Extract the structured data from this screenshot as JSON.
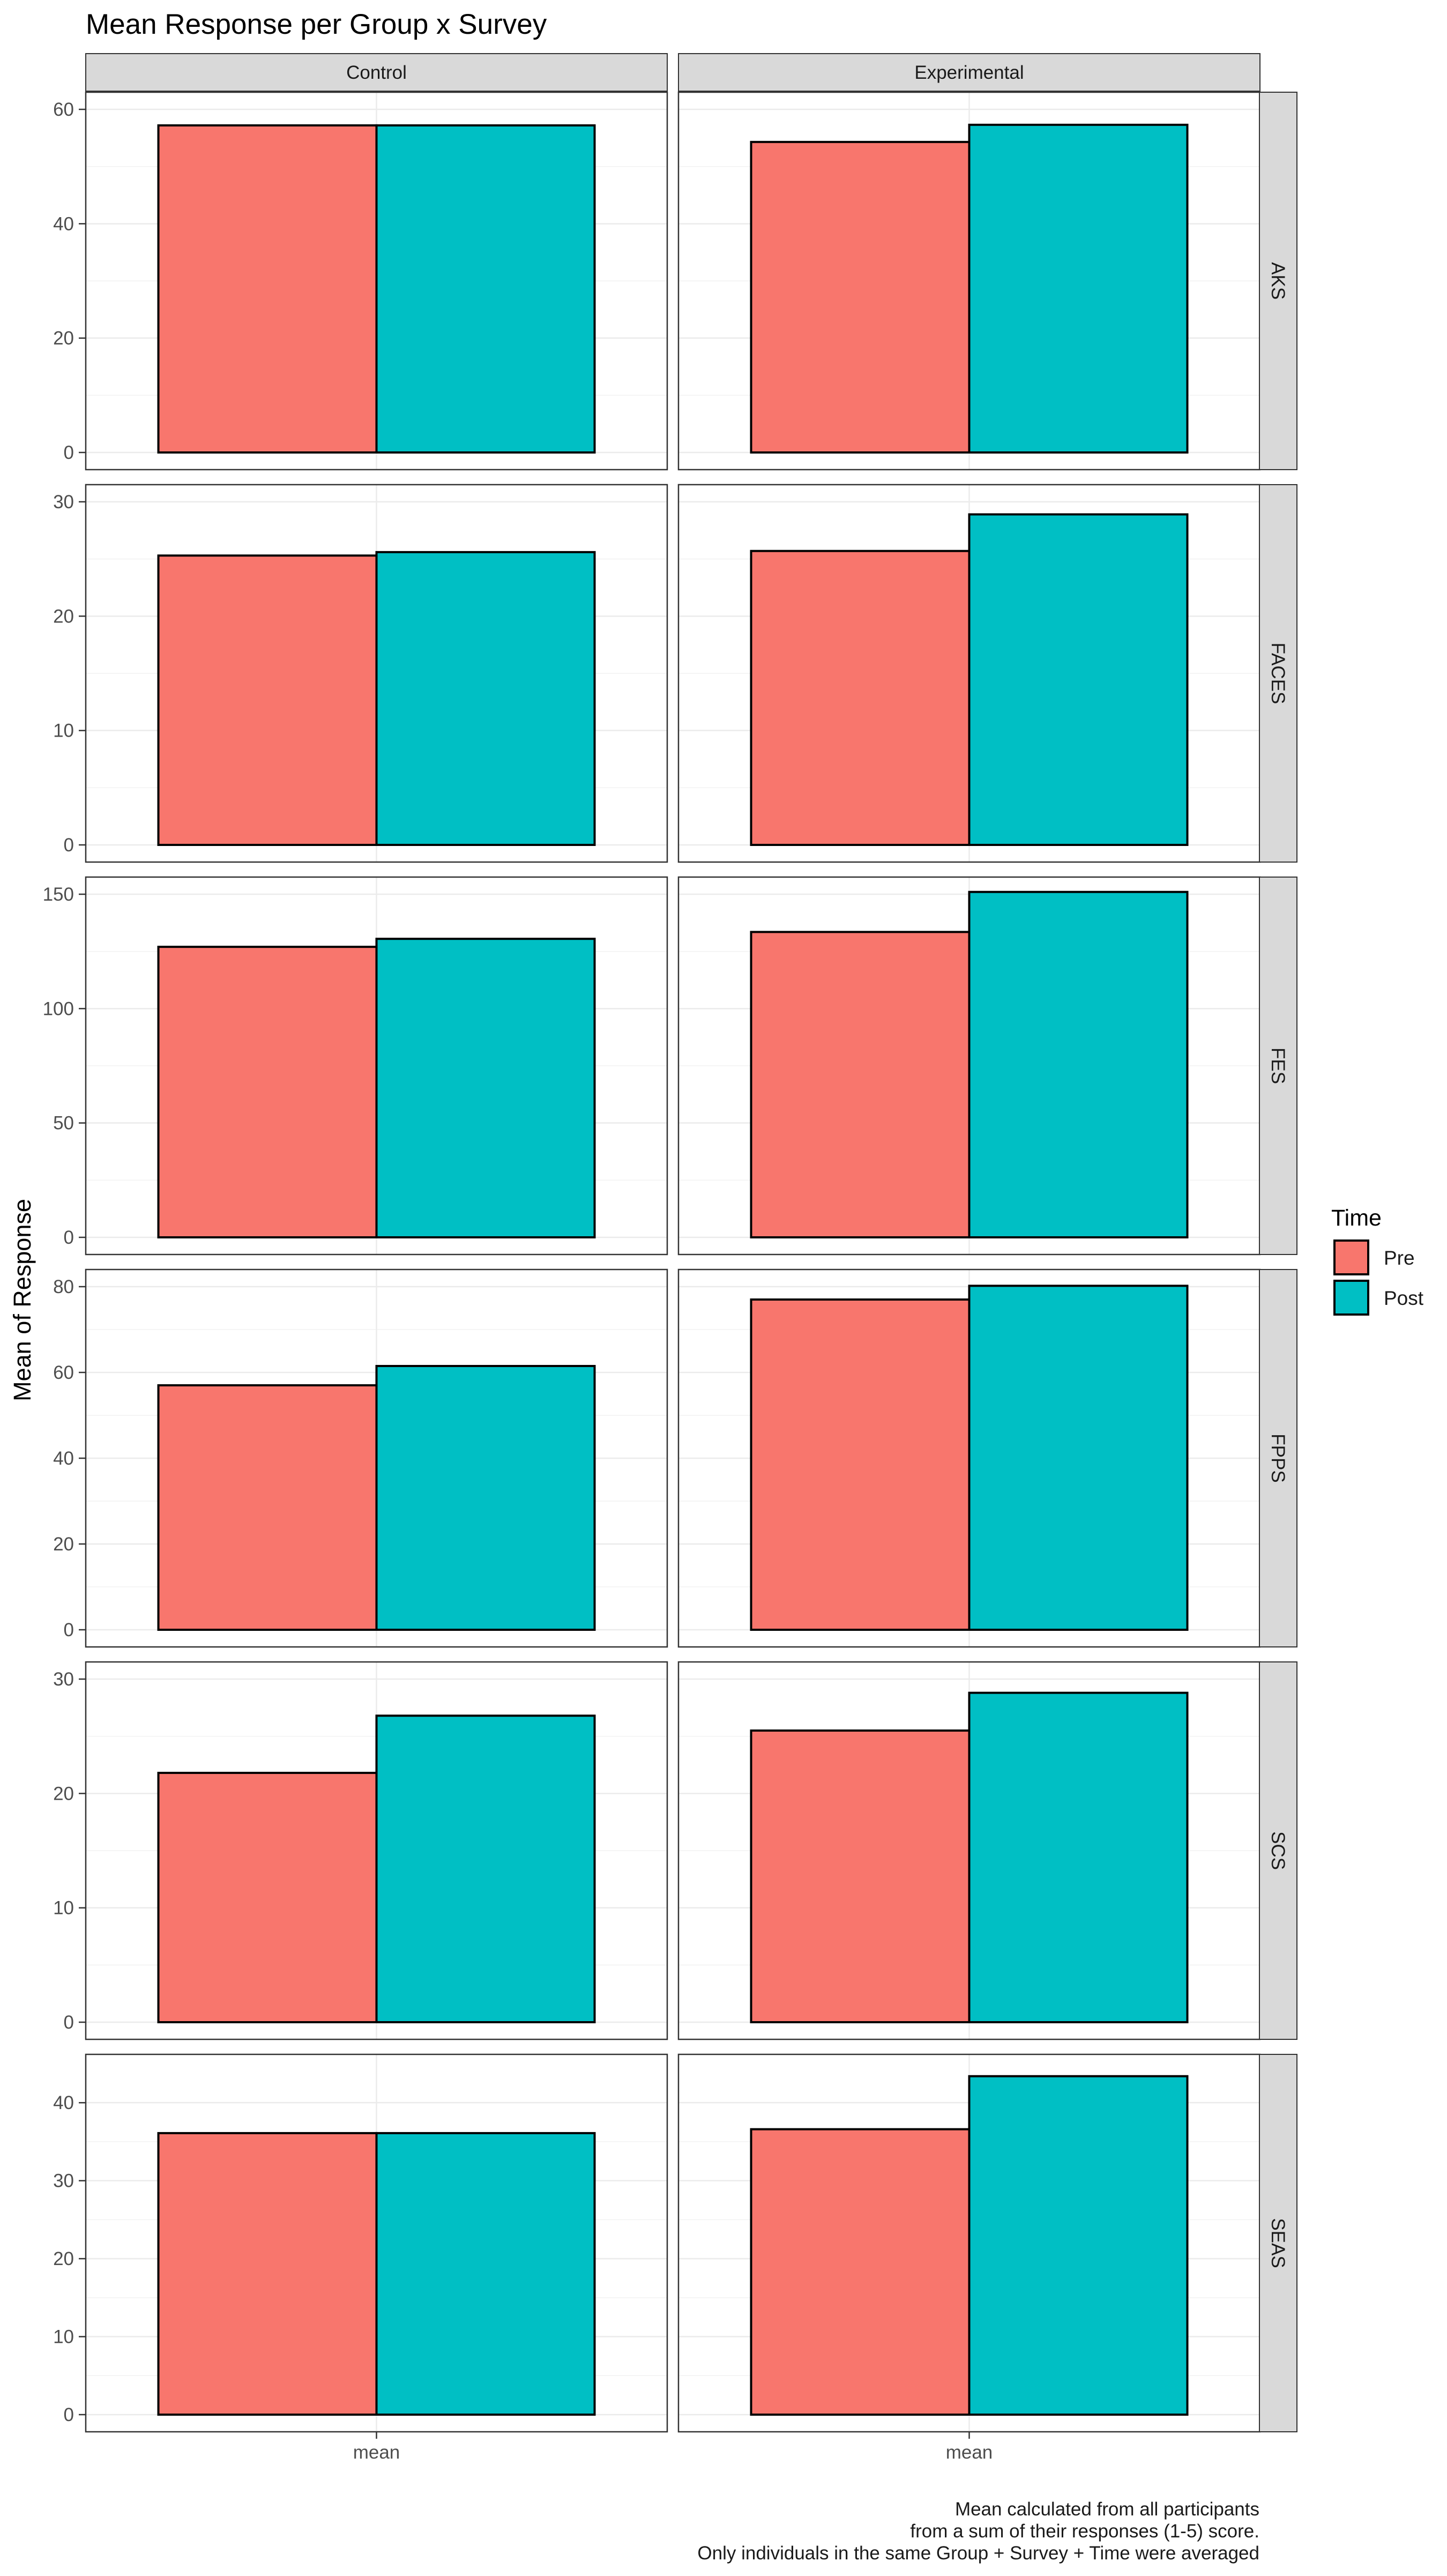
{
  "chart_data": {
    "type": "bar",
    "title": "Mean Response per Group x Survey",
    "xlabel": "",
    "ylabel": "Mean of Response",
    "column_facets": [
      "Control",
      "Experimental"
    ],
    "row_facets": [
      "AKS",
      "FACES",
      "FES",
      "FPPS",
      "SCS",
      "SEAS"
    ],
    "categories": [
      "mean"
    ],
    "legend": {
      "title": "Time",
      "position": "right",
      "entries": [
        "Pre",
        "Post"
      ]
    },
    "colors": {
      "Pre": "#F8766D",
      "Post": "#00BFC4"
    },
    "grid": true,
    "panels": [
      {
        "survey": "AKS",
        "ylim": [
          0,
          60
        ],
        "yticks": [
          0,
          20,
          40,
          60
        ],
        "groups": {
          "Control": {
            "Pre": 57.2,
            "Post": 57.2
          },
          "Experimental": {
            "Pre": 54.3,
            "Post": 57.3
          }
        }
      },
      {
        "survey": "FACES",
        "ylim": [
          0,
          30
        ],
        "yticks": [
          0,
          10,
          20,
          30
        ],
        "groups": {
          "Control": {
            "Pre": 25.3,
            "Post": 25.6
          },
          "Experimental": {
            "Pre": 25.7,
            "Post": 28.9
          }
        }
      },
      {
        "survey": "FES",
        "ylim": [
          0,
          150
        ],
        "yticks": [
          0,
          50,
          100,
          150
        ],
        "groups": {
          "Control": {
            "Pre": 127,
            "Post": 130.5
          },
          "Experimental": {
            "Pre": 133.5,
            "Post": 151
          }
        }
      },
      {
        "survey": "FPPS",
        "ylim": [
          0,
          80
        ],
        "yticks": [
          0,
          20,
          40,
          60,
          80
        ],
        "groups": {
          "Control": {
            "Pre": 57,
            "Post": 61.5
          },
          "Experimental": {
            "Pre": 77,
            "Post": 80.2
          }
        }
      },
      {
        "survey": "SCS",
        "ylim": [
          0,
          30
        ],
        "yticks": [
          0,
          10,
          20,
          30
        ],
        "groups": {
          "Control": {
            "Pre": 21.8,
            "Post": 26.8
          },
          "Experimental": {
            "Pre": 25.5,
            "Post": 28.8
          }
        }
      },
      {
        "survey": "SEAS",
        "ylim": [
          0,
          44
        ],
        "yticks": [
          0,
          10,
          20,
          30,
          40
        ],
        "groups": {
          "Control": {
            "Pre": 36.1,
            "Post": 36.1
          },
          "Experimental": {
            "Pre": 36.6,
            "Post": 43.4
          }
        }
      }
    ],
    "caption": [
      "Mean calculated from all participants",
      "from a sum of their responses (1-5) score.",
      "Only individuals in the  same Group + Survey + Time were averaged"
    ]
  }
}
